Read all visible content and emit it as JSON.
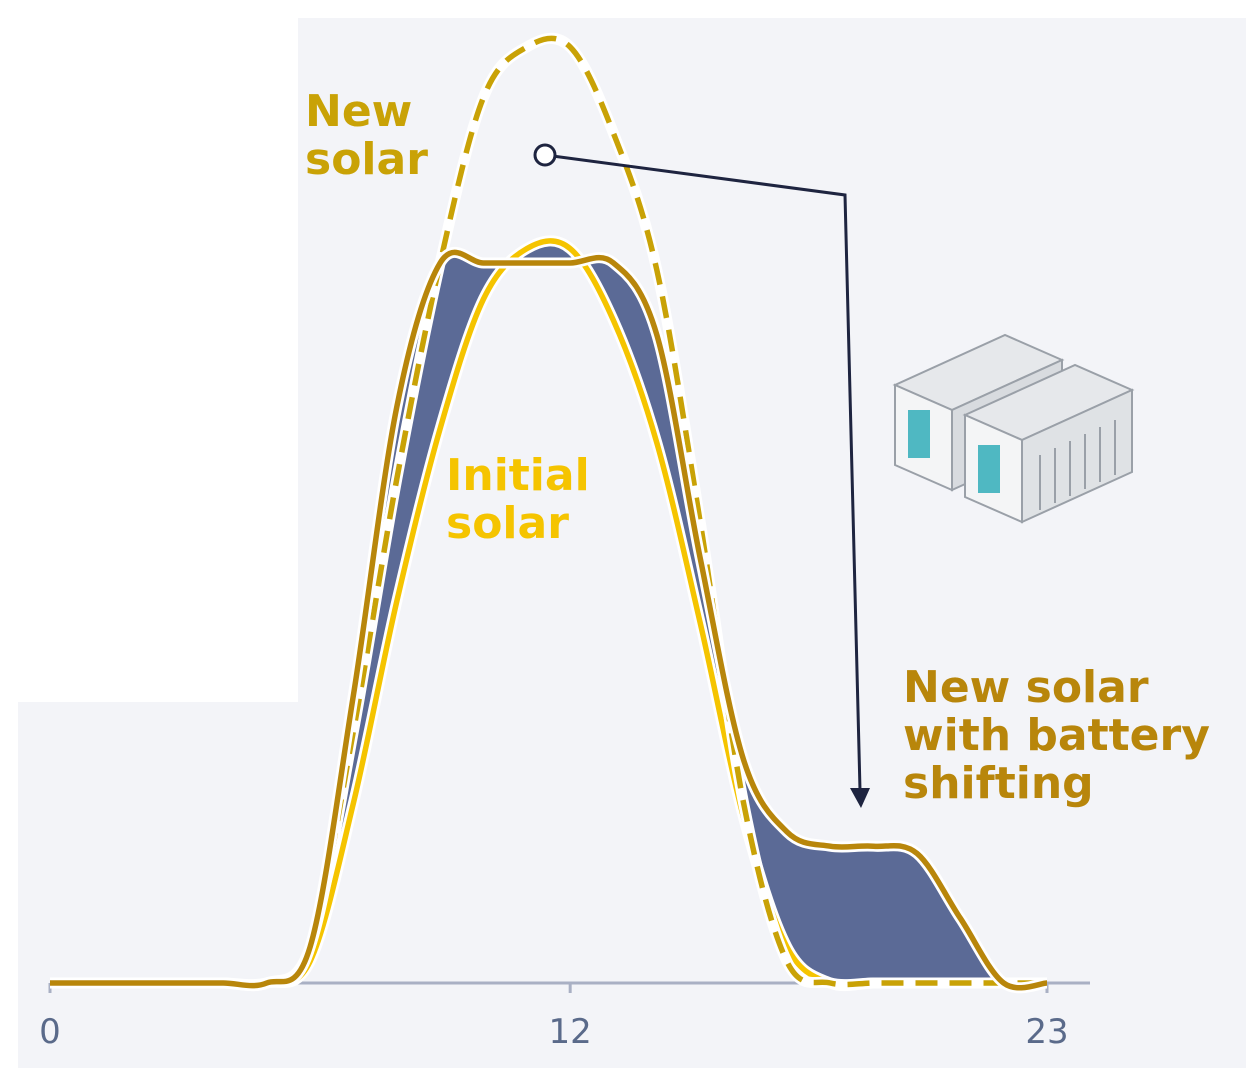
{
  "chart_data": {
    "type": "line",
    "x": [
      0,
      1,
      2,
      3,
      4,
      5,
      6,
      7,
      8,
      9,
      10,
      11,
      12,
      13,
      14,
      15,
      16,
      17,
      18,
      19,
      20,
      21,
      22,
      23
    ],
    "xlim": [
      0,
      23
    ],
    "xticks": [
      0,
      12,
      23
    ],
    "ylim": [
      0,
      135
    ],
    "series": [
      {
        "name": "New solar",
        "color": "#c9a206",
        "dashed": true,
        "values": [
          0,
          0,
          0,
          0,
          0,
          0,
          5,
          35,
          70,
          100,
          123,
          130,
          130,
          118,
          99,
          64,
          25,
          3,
          0,
          0,
          0,
          0,
          0,
          0
        ]
      },
      {
        "name": "Initial solar",
        "color": "#f5c400",
        "dashed": false,
        "values": [
          0,
          0,
          0,
          0,
          0,
          0,
          3,
          25,
          53,
          77,
          95,
          102,
          102,
          92,
          75,
          50,
          23,
          5,
          0,
          0,
          0,
          0,
          0,
          0
        ]
      },
      {
        "name": "New solar with battery shifting",
        "color": "#b8860b",
        "dashed": false,
        "values": [
          0,
          0,
          0,
          0,
          0,
          0,
          5,
          40,
          80,
          100,
          100,
          100,
          100,
          100,
          90,
          59,
          31,
          21,
          19,
          19,
          18,
          9,
          0,
          0
        ]
      }
    ],
    "shifted_color": "#5b6a96"
  }
}
